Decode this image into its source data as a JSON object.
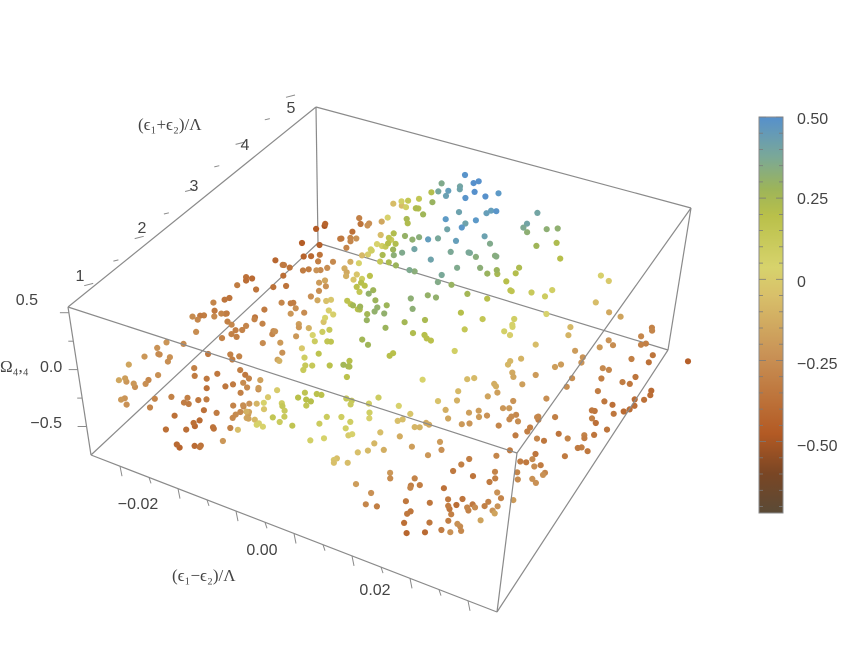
{
  "chart_data": {
    "type": "scatter",
    "title": "",
    "axes": {
      "x": {
        "label": "(ϵ₁−ϵ₂)/Λ",
        "range": [
          -0.035,
          0.035
        ],
        "ticks": [
          {
            "value": -0.02,
            "label": "−0.02"
          },
          {
            "value": 0.0,
            "label": "0.00"
          },
          {
            "value": 0.02,
            "label": "0.02"
          }
        ]
      },
      "y": {
        "label": "(ϵ₁+ϵ₂)/Λ",
        "range": [
          0.5,
          5.0
        ],
        "ticks": [
          {
            "value": 1,
            "label": "1"
          },
          {
            "value": 2,
            "label": "2"
          },
          {
            "value": 3,
            "label": "3"
          },
          {
            "value": 4,
            "label": "4"
          },
          {
            "value": 5,
            "label": "5"
          }
        ]
      },
      "z": {
        "label": "Ω₄,₄",
        "range": [
          -0.75,
          0.55
        ],
        "ticks": [
          {
            "value": 0.5,
            "label": "0.5"
          },
          {
            "value": 0.0,
            "label": "0.0"
          },
          {
            "value": -0.5,
            "label": "−0.5"
          }
        ]
      }
    },
    "colorbar": {
      "range": [
        -0.72,
        0.5
      ],
      "ticks": [
        {
          "value": 0.5,
          "label": "0.50"
        },
        {
          "value": 0.25,
          "label": "0.25"
        },
        {
          "value": 0,
          "label": "0"
        },
        {
          "value": -0.25,
          "label": "−0.25"
        },
        {
          "value": -0.5,
          "label": "−0.50"
        }
      ],
      "palette": [
        "#5a4a36",
        "#7a4624",
        "#b35a24",
        "#c99256",
        "#d8c06a",
        "#d7d36c",
        "#b9c04a",
        "#9cb45a",
        "#7aa898",
        "#5f9cc6",
        "#5690cc"
      ]
    },
    "series": [
      {
        "name": "Ω₄,₄",
        "point_color": "by z value",
        "z_model": "z = 0.5·cos(π·x/0.035)·(0.25 + 0.75·(y−0.5)/4.5) − 0.4·(1 − cos²(π·x/0.035))·(1 − (y−0.5)/4.5)",
        "sampling": {
          "x_lines": [
            -0.032,
            -0.029,
            -0.026,
            -0.023,
            -0.02,
            -0.017,
            -0.014,
            -0.011,
            -0.008,
            -0.005,
            -0.002,
            0.001,
            0.004,
            0.007,
            0.01,
            0.013,
            0.016,
            0.019,
            0.022,
            0.025,
            0.028,
            0.031
          ],
          "points_per_line": 26,
          "y_from": 0.6,
          "y_to": 4.95
        }
      }
    ]
  }
}
